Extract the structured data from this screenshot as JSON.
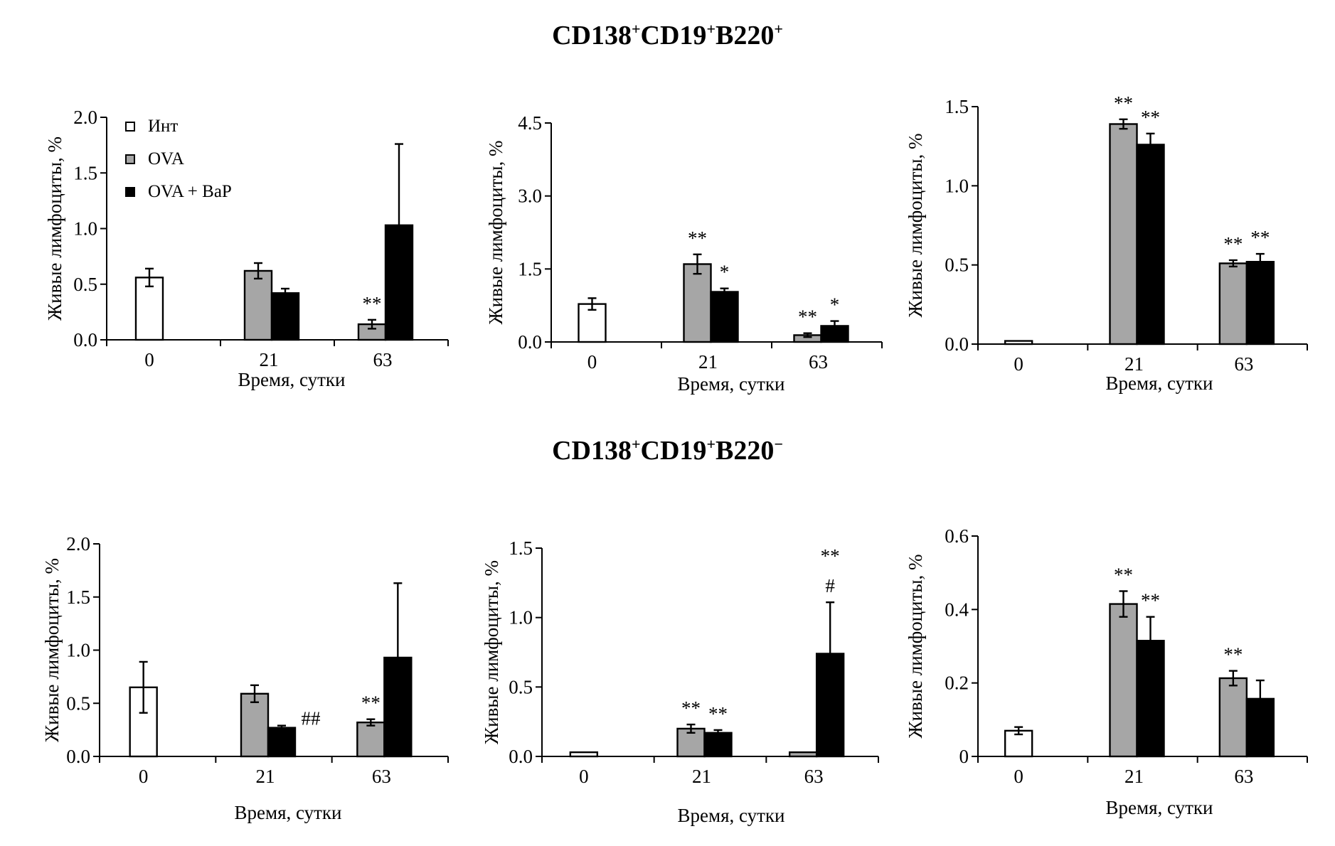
{
  "titles": {
    "top": {
      "main": "CD138",
      "parts": [
        "CD138",
        "+",
        "CD19",
        "+",
        "B220",
        "+"
      ]
    },
    "bottom": {
      "parts": [
        "CD138",
        "+",
        "CD19",
        "+",
        "B220",
        "−"
      ]
    }
  },
  "legend": {
    "items": [
      {
        "label": "Инт",
        "color": "#ffffff"
      },
      {
        "label": "OVA",
        "color": "#a6a6a6"
      },
      {
        "label": "OVA + BaP",
        "color": "#000000"
      }
    ]
  },
  "colors": {
    "int": "#ffffff",
    "ova": "#a6a6a6",
    "ova_bap": "#000000",
    "axis": "#000000"
  },
  "chart_data": [
    {
      "type": "bar",
      "panel": "top-1",
      "categories": [
        "0",
        "21",
        "63"
      ],
      "xlabel": "Время, сутки",
      "ylabel": "Живые лимфоциты, %",
      "ylim": [
        0,
        2.0
      ],
      "yticks": [
        "0.0",
        "0.5",
        "1.0",
        "1.5",
        "2.0"
      ],
      "legend_entries": [
        "Инт",
        "OVA",
        "OVA + BaP"
      ],
      "bars": [
        {
          "cat": 0,
          "series": "int",
          "value": 0.56,
          "err": 0.08,
          "label": ""
        },
        {
          "cat": 1,
          "series": "ova",
          "value": 0.62,
          "err": 0.07,
          "label": ""
        },
        {
          "cat": 1,
          "series": "ova_bap",
          "value": 0.42,
          "err": 0.04,
          "label": ""
        },
        {
          "cat": 2,
          "series": "ova",
          "value": 0.14,
          "err": 0.04,
          "label": "**"
        },
        {
          "cat": 2,
          "series": "ova_bap",
          "value": 1.03,
          "err": 0.73,
          "label": ""
        }
      ]
    },
    {
      "type": "bar",
      "panel": "top-2",
      "categories": [
        "0",
        "21",
        "63"
      ],
      "xlabel": "Время, сутки",
      "ylabel": "Живые лимфоциты, %",
      "ylim": [
        0,
        4.5
      ],
      "yticks": [
        "0.0",
        "1.5",
        "3.0",
        "4.5"
      ],
      "bars": [
        {
          "cat": 0,
          "series": "int",
          "value": 0.78,
          "err": 0.12,
          "label": ""
        },
        {
          "cat": 1,
          "series": "ova",
          "value": 1.6,
          "err": 0.2,
          "label": "**"
        },
        {
          "cat": 1,
          "series": "ova_bap",
          "value": 1.03,
          "err": 0.07,
          "label": "*"
        },
        {
          "cat": 2,
          "series": "ova",
          "value": 0.14,
          "err": 0.04,
          "label": "**"
        },
        {
          "cat": 2,
          "series": "ova_bap",
          "value": 0.33,
          "err": 0.1,
          "label": "*"
        }
      ]
    },
    {
      "type": "bar",
      "panel": "top-3",
      "categories": [
        "0",
        "21",
        "63"
      ],
      "xlabel": "Время, сутки",
      "ylabel": "Живые лимфоциты, %",
      "ylim": [
        0,
        1.5
      ],
      "yticks": [
        "0.0",
        "0.5",
        "1.0",
        "1.5"
      ],
      "bars": [
        {
          "cat": 0,
          "series": "int",
          "value": 0.02,
          "err": 0,
          "label": ""
        },
        {
          "cat": 1,
          "series": "ova",
          "value": 1.39,
          "err": 0.03,
          "label": "**"
        },
        {
          "cat": 1,
          "series": "ova_bap",
          "value": 1.26,
          "err": 0.07,
          "label": "**"
        },
        {
          "cat": 2,
          "series": "ova",
          "value": 0.51,
          "err": 0.02,
          "label": "**"
        },
        {
          "cat": 2,
          "series": "ova_bap",
          "value": 0.52,
          "err": 0.05,
          "label": "**"
        }
      ]
    },
    {
      "type": "bar",
      "panel": "bottom-1",
      "categories": [
        "0",
        "21",
        "63"
      ],
      "xlabel": "Время, сутки",
      "ylabel": "Живые лимфоциты, %",
      "ylim": [
        0,
        2.0
      ],
      "yticks": [
        "0.0",
        "0.5",
        "1.0",
        "1.5",
        "2.0"
      ],
      "bars": [
        {
          "cat": 0,
          "series": "int",
          "value": 0.65,
          "err": 0.24,
          "label": ""
        },
        {
          "cat": 1,
          "series": "ova",
          "value": 0.59,
          "err": 0.08,
          "label": ""
        },
        {
          "cat": 1,
          "series": "ova_bap",
          "value": 0.27,
          "err": 0.02,
          "label": "##"
        },
        {
          "cat": 2,
          "series": "ova",
          "value": 0.32,
          "err": 0.03,
          "label": "**"
        },
        {
          "cat": 2,
          "series": "ova_bap",
          "value": 0.93,
          "err": 0.7,
          "label": ""
        }
      ]
    },
    {
      "type": "bar",
      "panel": "bottom-2",
      "categories": [
        "0",
        "21",
        "63"
      ],
      "xlabel": "Время, сутки",
      "ylabel": "Живые лимфоциты, %",
      "ylim": [
        0,
        1.5
      ],
      "yticks": [
        "0.0",
        "0.5",
        "1.0",
        "1.5"
      ],
      "bars": [
        {
          "cat": 0,
          "series": "int",
          "value": 0.03,
          "err": 0,
          "label": ""
        },
        {
          "cat": 1,
          "series": "ova",
          "value": 0.2,
          "err": 0.03,
          "label": "**"
        },
        {
          "cat": 1,
          "series": "ova_bap",
          "value": 0.17,
          "err": 0.02,
          "label": "**"
        },
        {
          "cat": 2,
          "series": "ova",
          "value": 0.03,
          "err": 0,
          "label": ""
        },
        {
          "cat": 2,
          "series": "ova_bap",
          "value": 0.74,
          "err": 0.37,
          "label": "**\n#"
        }
      ]
    },
    {
      "type": "bar",
      "panel": "bottom-3",
      "categories": [
        "0",
        "21",
        "63"
      ],
      "xlabel": "Время, сутки",
      "ylabel": "Живые лимфоциты, %",
      "ylim": [
        0,
        0.6
      ],
      "yticks": [
        "0",
        "0.2",
        "0.4",
        "0.6"
      ],
      "bars": [
        {
          "cat": 0,
          "series": "int",
          "value": 0.07,
          "err": 0.01,
          "label": ""
        },
        {
          "cat": 1,
          "series": "ova",
          "value": 0.415,
          "err": 0.035,
          "label": "**"
        },
        {
          "cat": 1,
          "series": "ova_bap",
          "value": 0.315,
          "err": 0.065,
          "label": "**"
        },
        {
          "cat": 2,
          "series": "ova",
          "value": 0.213,
          "err": 0.02,
          "label": "**"
        },
        {
          "cat": 2,
          "series": "ova_bap",
          "value": 0.157,
          "err": 0.05,
          "label": ""
        }
      ]
    }
  ]
}
